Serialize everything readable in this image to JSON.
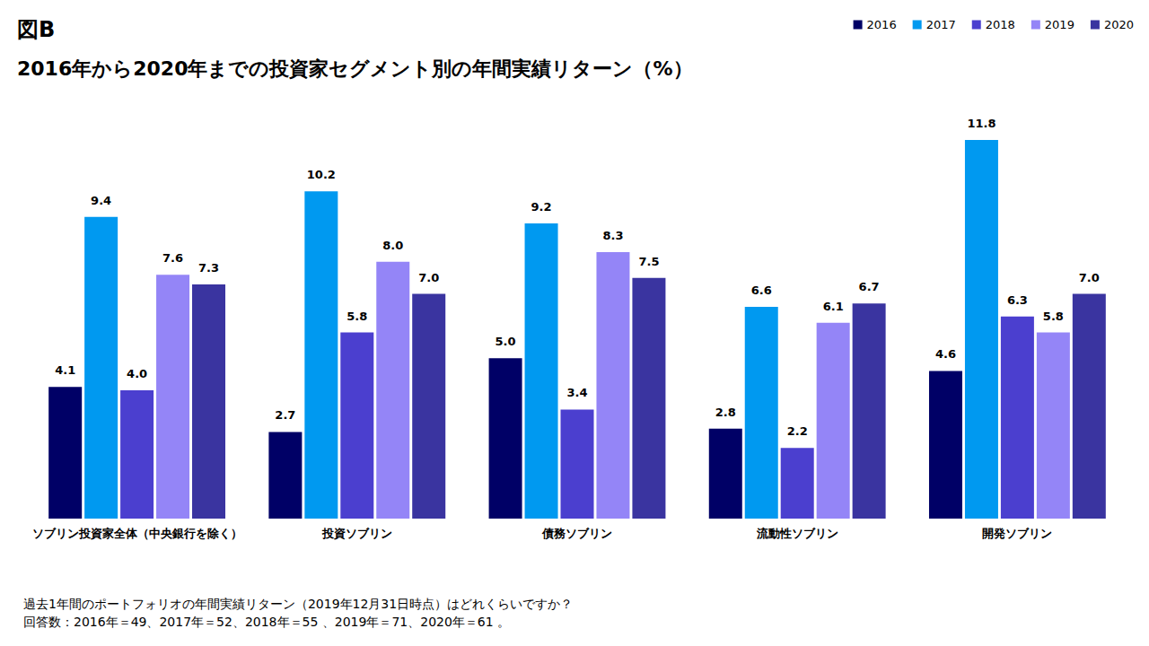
{
  "chart_data": {
    "type": "bar",
    "title": "図B",
    "subtitle": "2016年から2020年までの投資家セグメント別の年間実績リターン（%）",
    "categories": [
      "ソブリン投資家全体（中央銀行を除く）",
      "投資ソブリン",
      "債務ソブリン",
      "流動性ソブリン",
      "開発ソブリン"
    ],
    "series": [
      {
        "name": "2016",
        "color": "#000066",
        "values": [
          4.1,
          2.7,
          5.0,
          2.8,
          4.6
        ],
        "value_labels": [
          "4.1",
          "2.7",
          "5.0",
          "2.8",
          "4.6"
        ]
      },
      {
        "name": "2017",
        "color": "#0099f0",
        "values": [
          9.4,
          10.2,
          9.2,
          6.6,
          11.8
        ],
        "value_labels": [
          "9.4",
          "10.2",
          "9.2",
          "6.6",
          "11.8"
        ]
      },
      {
        "name": "2018",
        "color": "#4b3fcf",
        "values": [
          4.0,
          5.8,
          3.4,
          2.2,
          6.3
        ],
        "value_labels": [
          "4.0",
          "5.8",
          "3.4",
          "2.2",
          "6.3"
        ]
      },
      {
        "name": "2019",
        "color": "#9485f7",
        "values": [
          7.6,
          8.0,
          8.3,
          6.1,
          5.8
        ],
        "value_labels": [
          "7.6",
          "8.0",
          "8.3",
          "6.1",
          "5.8"
        ]
      },
      {
        "name": "2020",
        "color": "#3a34a0",
        "values": [
          7.3,
          7.0,
          7.5,
          6.7,
          7.0
        ],
        "value_labels": [
          "7.3",
          "7.0",
          "7.5",
          "6.7",
          "7.0"
        ]
      }
    ],
    "ylim": [
      0,
      13
    ],
    "yticks": [
      0,
      13
    ],
    "grid": false,
    "legend": "top-right",
    "data_labels": true,
    "tick_labels": "x",
    "annotations": [
      "過去1年間のポートフォリオの年間実績リターン（2019年12月31日時点）はどれくらいですか？",
      "回答数：2016年＝49、2017年＝52、2018年＝55 、2019年＝71、2020年＝61 。"
    ]
  }
}
